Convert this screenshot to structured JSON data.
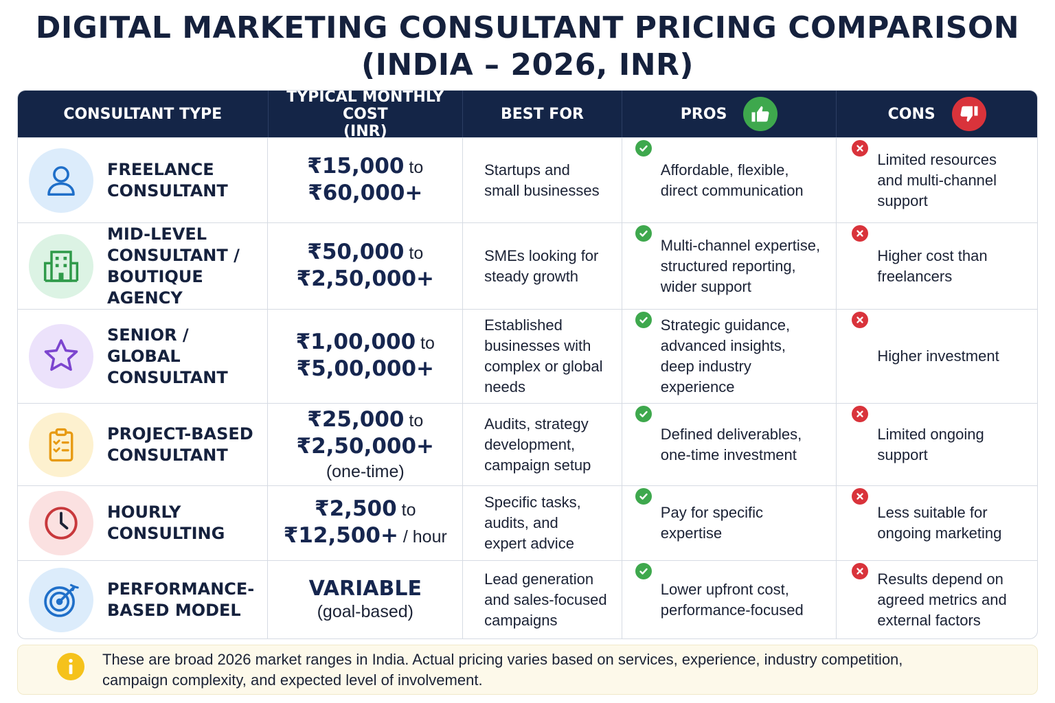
{
  "title": {
    "line1": "DIGITAL MARKETING CONSULTANT PRICING COMPARISON",
    "line2": "(INDIA – 2026, INR)"
  },
  "headers": {
    "type": "CONSULTANT TYPE",
    "cost_line1": "TYPICAL MONTHLY COST",
    "cost_line2": "(INR)",
    "best_for": "BEST FOR",
    "pros": "PROS",
    "cons": "CONS",
    "pros_icon": "thumbs-up-icon",
    "cons_icon": "thumbs-down-icon"
  },
  "rows": [
    {
      "icon": "user-icon",
      "name": [
        "FREELANCE",
        "CONSULTANT"
      ],
      "cost": {
        "from": "₹15,000",
        "to_word": "to",
        "upto": "₹60,000+"
      },
      "best_for": [
        "Startups and",
        "small businesses"
      ],
      "pros": [
        "Affordable, flexible,",
        "direct communication"
      ],
      "cons": [
        "Limited resources",
        "and multi-channel",
        "support"
      ]
    },
    {
      "icon": "building-icon",
      "name": [
        "MID-LEVEL",
        "CONSULTANT /",
        "BOUTIQUE AGENCY"
      ],
      "cost": {
        "from": "₹50,000",
        "to_word": "to",
        "upto": "₹2,50,000+"
      },
      "best_for": [
        "SMEs looking for",
        "steady growth"
      ],
      "pros": [
        "Multi-channel expertise,",
        "structured reporting,",
        "wider support"
      ],
      "cons": [
        "Higher cost than",
        "freelancers"
      ]
    },
    {
      "icon": "star-icon",
      "name": [
        "SENIOR / GLOBAL",
        "CONSULTANT"
      ],
      "cost": {
        "from": "₹1,00,000",
        "to_word": "to",
        "upto": "₹5,00,000+"
      },
      "best_for": [
        "Established",
        "businesses with",
        "complex or global",
        "needs"
      ],
      "pros": [
        "Strategic guidance,",
        "advanced insights,",
        "deep industry",
        "experience"
      ],
      "cons": [
        "Higher investment"
      ]
    },
    {
      "icon": "clipboard-checklist-icon",
      "name": [
        "PROJECT-BASED",
        "CONSULTANT"
      ],
      "cost": {
        "from": "₹25,000",
        "to_word": "to",
        "upto": "₹2,50,000+",
        "note": "(one-time)"
      },
      "best_for": [
        "Audits, strategy",
        "development,",
        "campaign setup"
      ],
      "pros": [
        "Defined deliverables,",
        "one-time investment"
      ],
      "cons": [
        "Limited ongoing",
        "support"
      ]
    },
    {
      "icon": "clock-icon",
      "name": [
        "HOURLY",
        "CONSULTING"
      ],
      "cost": {
        "from": "₹2,500",
        "to_word": "to",
        "upto": "₹12,500+",
        "unit": "/ hour"
      },
      "best_for": [
        "Specific tasks,",
        "audits, and",
        "expert advice"
      ],
      "pros": [
        "Pay for specific",
        "expertise"
      ],
      "cons": [
        "Less suitable for",
        "ongoing marketing"
      ]
    },
    {
      "icon": "target-icon",
      "name": [
        "PERFORMANCE-",
        "BASED MODEL"
      ],
      "cost": {
        "variable": "VARIABLE",
        "note": "(goal-based)"
      },
      "best_for": [
        "Lead generation",
        "and sales-focused",
        "campaigns"
      ],
      "pros": [
        "Lower upfront cost,",
        "performance-focused"
      ],
      "cons": [
        "Results depend on",
        "agreed metrics and",
        "external factors"
      ]
    }
  ],
  "footnote": {
    "icon": "info-icon",
    "line1": "These are broad 2026 market ranges in India. Actual pricing varies based on services, experience, industry competition,",
    "line2": "campaign complexity, and expected level of involvement."
  },
  "colors": {
    "header_bg": "#142547",
    "title": "#15213d",
    "pros_green": "#3ea84d",
    "cons_red": "#d9333b",
    "note_bg": "#fdf9ea",
    "info_yellow": "#f5c21b"
  }
}
